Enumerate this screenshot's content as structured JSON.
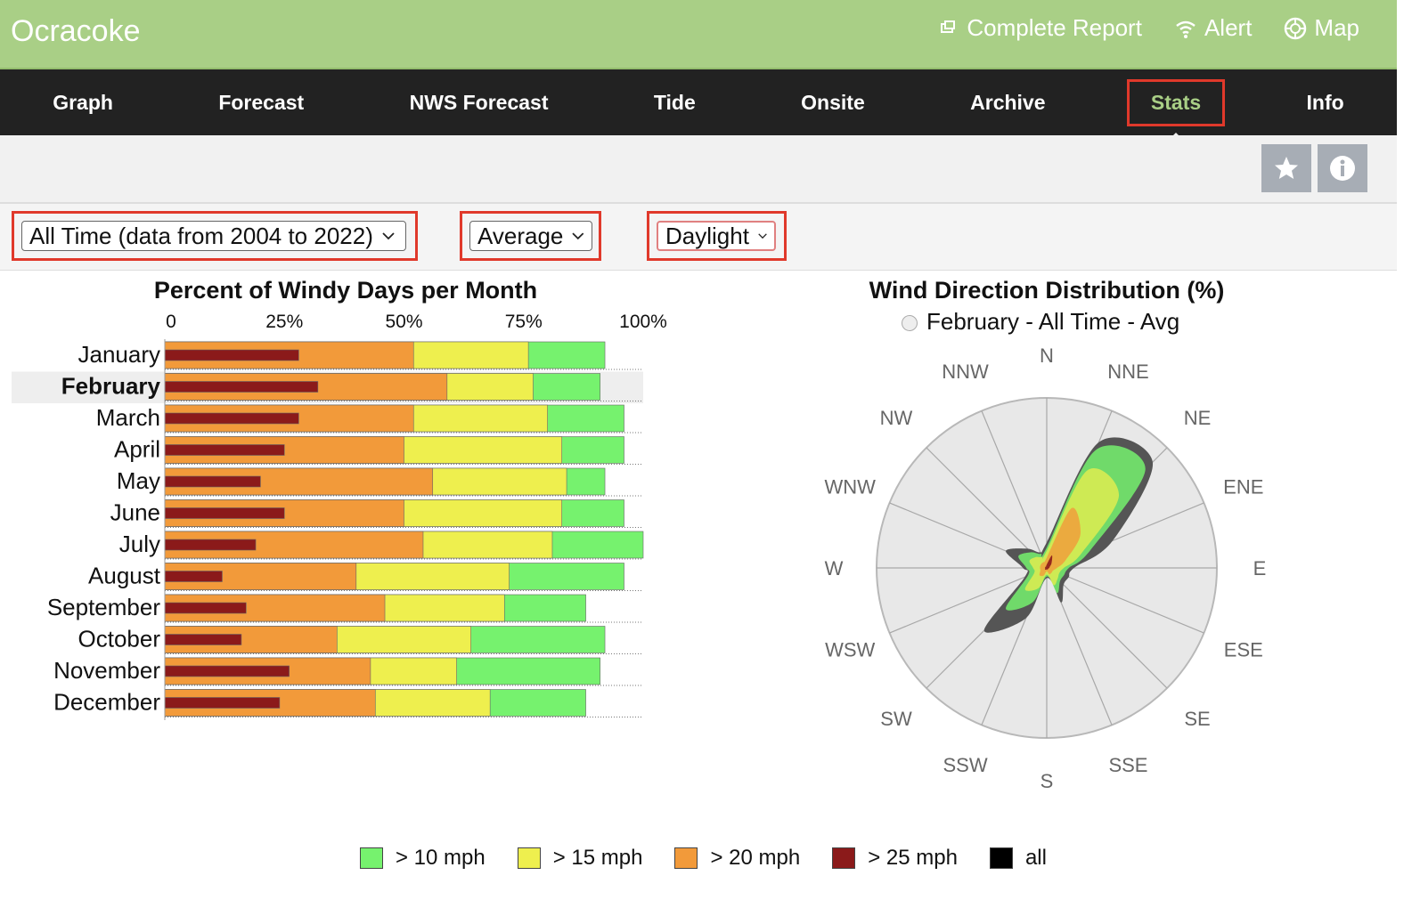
{
  "header": {
    "title": "Ocracoke",
    "links": [
      {
        "label": "Complete Report",
        "icon": "report-icon"
      },
      {
        "label": "Alert",
        "icon": "wifi-icon"
      },
      {
        "label": "Map",
        "icon": "map-icon"
      }
    ]
  },
  "nav": {
    "items": [
      "Graph",
      "Forecast",
      "NWS Forecast",
      "Tide",
      "Onsite",
      "Archive",
      "Stats",
      "Info"
    ],
    "active": "Stats"
  },
  "toolbar": {
    "icons": [
      "star-icon",
      "info-icon"
    ]
  },
  "filters": {
    "range": "All Time (data from 2004 to 2022)",
    "stat": "Average",
    "period": "Daylight"
  },
  "colors": {
    "gt10": "#76f26e",
    "gt15": "#eeef4e",
    "gt20": "#f29a3a",
    "gt25": "#8b1a1a",
    "all": "#000000",
    "header_green": "#a9cf86",
    "highlight_red": "#e0392b"
  },
  "chart_data": [
    {
      "type": "bar",
      "title": "Percent of Windy Days per Month",
      "x_ticks": [
        "0",
        "25%",
        "50%",
        "75%",
        "100%"
      ],
      "xlim": [
        0,
        100
      ],
      "categories": [
        "January",
        "February",
        "March",
        "April",
        "May",
        "June",
        "July",
        "August",
        "September",
        "October",
        "November",
        "December"
      ],
      "selected_category": "February",
      "series": [
        {
          "name": "> 10 mph",
          "values": [
            92,
            91,
            96,
            96,
            92,
            96,
            100,
            96,
            88,
            92,
            91,
            88
          ]
        },
        {
          "name": "> 15 mph",
          "values": [
            76,
            77,
            80,
            83,
            84,
            83,
            81,
            72,
            71,
            64,
            61,
            68
          ]
        },
        {
          "name": "> 20 mph",
          "values": [
            52,
            59,
            52,
            50,
            56,
            50,
            54,
            40,
            46,
            36,
            43,
            44
          ]
        },
        {
          "name": "> 25 mph",
          "values": [
            28,
            32,
            28,
            25,
            20,
            25,
            19,
            12,
            17,
            16,
            26,
            24
          ]
        }
      ]
    },
    {
      "type": "radar",
      "title": "Wind Direction Distribution (%)",
      "subtitle": "February - All Time - Avg",
      "directions": [
        "N",
        "NNE",
        "NE",
        "ENE",
        "E",
        "ESE",
        "SE",
        "SSE",
        "S",
        "SSW",
        "SW",
        "WSW",
        "W",
        "WNW",
        "NW",
        "NNW"
      ],
      "series": [
        {
          "name": "all",
          "values": [
            3,
            16,
            17.6,
            8.4,
            3.2,
            2.8,
            2.8,
            4.4,
            1.2,
            6.4,
            10.4,
            2.8,
            2.8,
            5.2,
            3.2,
            2
          ]
        },
        {
          "name": "> 10 mph",
          "values": [
            2.4,
            15,
            16.4,
            5.6,
            2.6,
            2.2,
            2.2,
            3.2,
            1,
            4.4,
            6.8,
            2.4,
            2.4,
            3.6,
            2.6,
            1.8
          ]
        },
        {
          "name": "> 15 mph",
          "values": [
            2,
            12.4,
            12,
            4.4,
            2,
            1.6,
            1.8,
            2.2,
            0.8,
            2.6,
            3.6,
            1.6,
            1.6,
            2.2,
            1.8,
            1.4
          ]
        },
        {
          "name": "> 20 mph",
          "values": [
            1.2,
            7.6,
            5.6,
            2.4,
            1.2,
            0.8,
            0.8,
            0.8,
            0.4,
            1,
            1.2,
            0.8,
            0.8,
            0.8,
            0.8,
            0.8
          ]
        },
        {
          "name": "> 25 mph",
          "values": [
            0.4,
            1.6,
            0.8,
            0.4,
            0.3,
            0.2,
            0.2,
            0.2,
            0.2,
            0.2,
            0.3,
            0.2,
            0.2,
            0.2,
            0.2,
            0.2
          ]
        }
      ],
      "rmax": 20
    }
  ],
  "legend": [
    {
      "label": "> 10 mph",
      "color": "#76f26e"
    },
    {
      "label": "> 15 mph",
      "color": "#eeef4e"
    },
    {
      "label": "> 20 mph",
      "color": "#f29a3a"
    },
    {
      "label": "> 25 mph",
      "color": "#8b1a1a"
    },
    {
      "label": "all",
      "color": "#000000"
    }
  ]
}
